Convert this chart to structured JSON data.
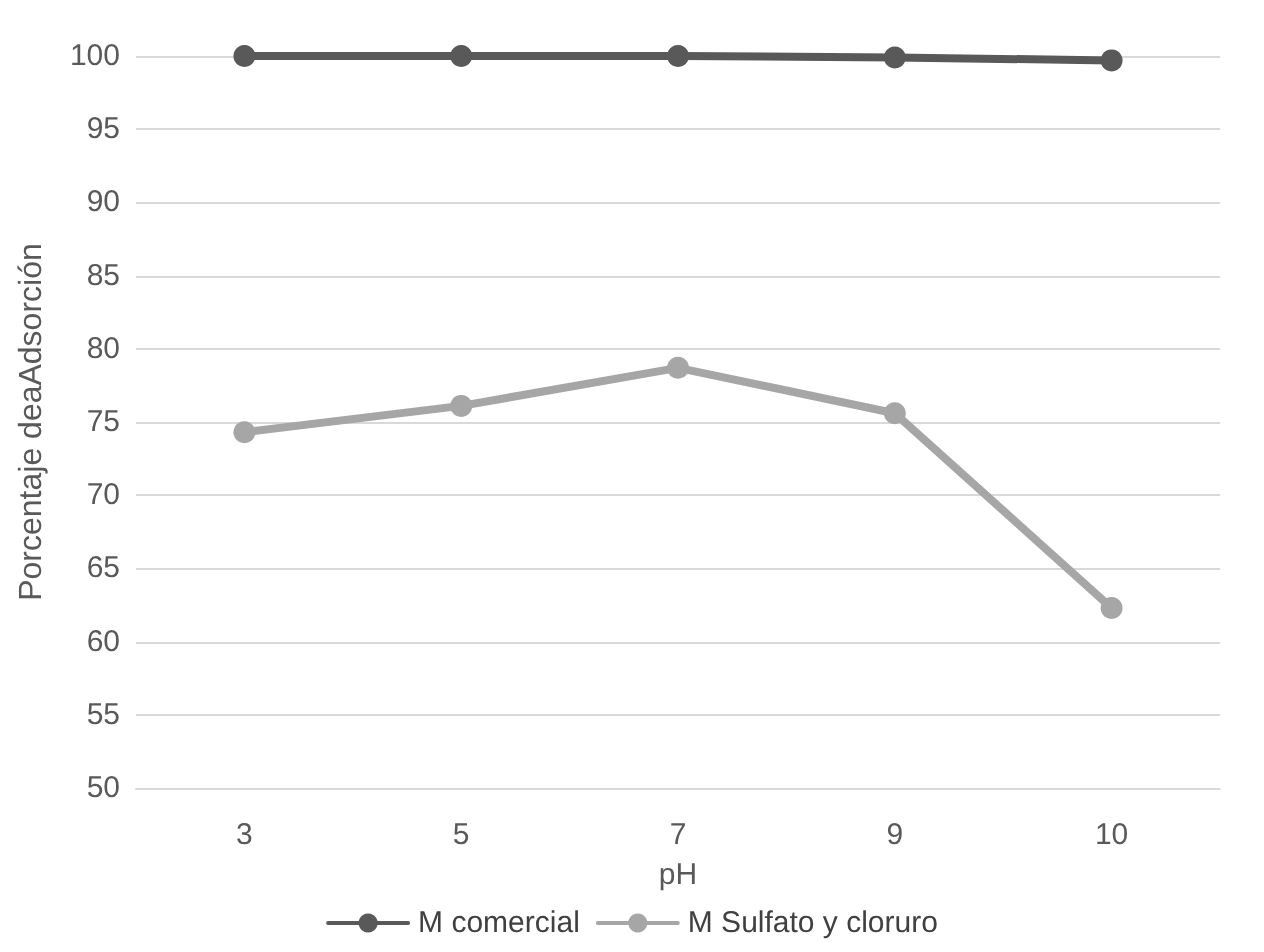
{
  "chart_data": {
    "type": "line",
    "xlabel": "pH",
    "ylabel": "Porcentaje deaAdsorción",
    "categories": [
      "3",
      "5",
      "7",
      "9",
      "10"
    ],
    "series": [
      {
        "name": "M comercial",
        "color": "#595959",
        "values": [
          100,
          100,
          100,
          99.9,
          99.7
        ]
      },
      {
        "name": "M Sulfato y cloruro",
        "color": "#a6a6a6",
        "values": [
          74.3,
          76.1,
          78.7,
          75.6,
          62.3
        ]
      }
    ],
    "ylim": [
      50,
      100
    ],
    "yticks": [
      50,
      55,
      60,
      65,
      70,
      75,
      80,
      85,
      90,
      95,
      100
    ],
    "grid": "y",
    "legend": "bottom",
    "marker": "circle",
    "line_style": "solid"
  }
}
